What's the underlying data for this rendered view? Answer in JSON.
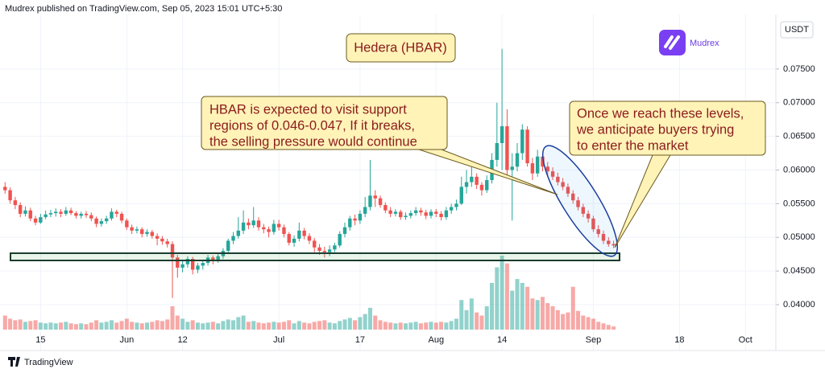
{
  "chart_data": {
    "type": "candlestick",
    "header": "Mudrex published on TradingView.com, Sep 05, 2023 15:01 UTC+5:30",
    "title": "Hedera (HBAR)",
    "logo": "Mudrex",
    "currency": "USDT",
    "footer": "TradingView",
    "annotations": [
      {
        "lines": [
          "HBAR is expected to visit support",
          "regions of 0.046-0.047, If it breaks,",
          "the selling pressure would continue"
        ]
      },
      {
        "lines": [
          "Once we reach these levels,",
          "we anticipate buyers trying",
          "to enter the market"
        ]
      }
    ],
    "x": [
      "2023-05-08",
      "2023-05-09",
      "2023-05-10",
      "2023-05-11",
      "2023-05-12",
      "2023-05-13",
      "2023-05-14",
      "2023-05-15",
      "2023-05-16",
      "2023-05-17",
      "2023-05-18",
      "2023-05-19",
      "2023-05-20",
      "2023-05-21",
      "2023-05-22",
      "2023-05-23",
      "2023-05-24",
      "2023-05-25",
      "2023-05-26",
      "2023-05-27",
      "2023-05-28",
      "2023-05-29",
      "2023-05-30",
      "2023-05-31",
      "2023-06-01",
      "2023-06-02",
      "2023-06-03",
      "2023-06-04",
      "2023-06-05",
      "2023-06-06",
      "2023-06-07",
      "2023-06-08",
      "2023-06-09",
      "2023-06-10",
      "2023-06-11",
      "2023-06-12",
      "2023-06-13",
      "2023-06-14",
      "2023-06-15",
      "2023-06-16",
      "2023-06-17",
      "2023-06-18",
      "2023-06-19",
      "2023-06-20",
      "2023-06-21",
      "2023-06-22",
      "2023-06-23",
      "2023-06-24",
      "2023-06-25",
      "2023-06-26",
      "2023-06-27",
      "2023-06-28",
      "2023-06-29",
      "2023-06-30",
      "2023-07-01",
      "2023-07-02",
      "2023-07-03",
      "2023-07-04",
      "2023-07-05",
      "2023-07-06",
      "2023-07-07",
      "2023-07-08",
      "2023-07-09",
      "2023-07-10",
      "2023-07-11",
      "2023-07-12",
      "2023-07-13",
      "2023-07-14",
      "2023-07-15",
      "2023-07-16",
      "2023-07-17",
      "2023-07-18",
      "2023-07-19",
      "2023-07-20",
      "2023-07-21",
      "2023-07-22",
      "2023-07-23",
      "2023-07-24",
      "2023-07-25",
      "2023-07-26",
      "2023-07-27",
      "2023-07-28",
      "2023-07-29",
      "2023-07-30",
      "2023-07-31",
      "2023-08-01",
      "2023-08-02",
      "2023-08-03",
      "2023-08-04",
      "2023-08-05",
      "2023-08-06",
      "2023-08-07",
      "2023-08-08",
      "2023-08-09",
      "2023-08-10",
      "2023-08-11",
      "2023-08-12",
      "2023-08-13",
      "2023-08-14",
      "2023-08-15",
      "2023-08-16",
      "2023-08-17",
      "2023-08-18",
      "2023-08-19",
      "2023-08-20",
      "2023-08-21",
      "2023-08-22",
      "2023-08-23",
      "2023-08-24",
      "2023-08-25",
      "2023-08-26",
      "2023-08-27",
      "2023-08-28",
      "2023-08-29",
      "2023-08-30",
      "2023-08-31",
      "2023-09-01",
      "2023-09-02",
      "2023-09-03",
      "2023-09-04",
      "2023-09-05"
    ],
    "open": [
      0.0575,
      0.057,
      0.0555,
      0.0548,
      0.0535,
      0.054,
      0.0528,
      0.0522,
      0.053,
      0.0534,
      0.0536,
      0.0538,
      0.0535,
      0.054,
      0.0536,
      0.0532,
      0.0535,
      0.0533,
      0.0528,
      0.052,
      0.0524,
      0.0528,
      0.0538,
      0.0535,
      0.0525,
      0.0515,
      0.051,
      0.0512,
      0.0505,
      0.0508,
      0.0502,
      0.0498,
      0.0494,
      0.049,
      0.047,
      0.0455,
      0.046,
      0.0468,
      0.0452,
      0.0458,
      0.0462,
      0.047,
      0.0466,
      0.0472,
      0.048,
      0.0495,
      0.0502,
      0.051,
      0.0522,
      0.0518,
      0.0525,
      0.0515,
      0.0512,
      0.0508,
      0.052,
      0.0515,
      0.0505,
      0.0492,
      0.0498,
      0.051,
      0.0502,
      0.0495,
      0.0485,
      0.048,
      0.0478,
      0.0482,
      0.0488,
      0.0505,
      0.0515,
      0.0528,
      0.0525,
      0.0535,
      0.0545,
      0.0562,
      0.0558,
      0.0548,
      0.054,
      0.0535,
      0.0538,
      0.053,
      0.0532,
      0.0536,
      0.054,
      0.0537,
      0.0532,
      0.0538,
      0.0535,
      0.053,
      0.054,
      0.0545,
      0.055,
      0.0575,
      0.0582,
      0.059,
      0.0578,
      0.057,
      0.0585,
      0.0615,
      0.064,
      0.0665,
      0.06,
      0.0605,
      0.0625,
      0.066,
      0.061,
      0.0595,
      0.062,
      0.0605,
      0.0598,
      0.059,
      0.0582,
      0.0575,
      0.0565,
      0.0555,
      0.0545,
      0.0535,
      0.0528,
      0.0512,
      0.0505,
      0.0495,
      0.049
    ],
    "high": [
      0.0582,
      0.0574,
      0.056,
      0.0552,
      0.0546,
      0.0544,
      0.0532,
      0.0535,
      0.054,
      0.0541,
      0.0543,
      0.0542,
      0.0545,
      0.0544,
      0.0539,
      0.0538,
      0.0539,
      0.0537,
      0.0531,
      0.0528,
      0.0532,
      0.0543,
      0.0541,
      0.0538,
      0.0528,
      0.0519,
      0.0516,
      0.0515,
      0.0512,
      0.0511,
      0.0506,
      0.0502,
      0.0498,
      0.0494,
      0.0474,
      0.0466,
      0.0472,
      0.0471,
      0.0462,
      0.0466,
      0.0474,
      0.0473,
      0.0476,
      0.0484,
      0.0498,
      0.0508,
      0.053,
      0.054,
      0.0528,
      0.0545,
      0.053,
      0.052,
      0.0516,
      0.0526,
      0.0526,
      0.0519,
      0.0508,
      0.0503,
      0.0522,
      0.0514,
      0.0506,
      0.0499,
      0.049,
      0.0486,
      0.0488,
      0.0492,
      0.0509,
      0.0522,
      0.0532,
      0.0534,
      0.054,
      0.056,
      0.0615,
      0.057,
      0.0562,
      0.0552,
      0.0545,
      0.0542,
      0.0541,
      0.0537,
      0.054,
      0.0545,
      0.0544,
      0.0541,
      0.0542,
      0.0542,
      0.0539,
      0.0545,
      0.055,
      0.0556,
      0.059,
      0.06,
      0.0605,
      0.0595,
      0.0582,
      0.0592,
      0.0625,
      0.07,
      0.078,
      0.069,
      0.0625,
      0.064,
      0.0668,
      0.0665,
      0.0618,
      0.063,
      0.0625,
      0.0612,
      0.0604,
      0.0596,
      0.0588,
      0.058,
      0.057,
      0.056,
      0.055,
      0.054,
      0.0532,
      0.0518,
      0.051,
      0.05,
      0.0495
    ],
    "low": [
      0.0565,
      0.055,
      0.0542,
      0.053,
      0.0531,
      0.0524,
      0.0518,
      0.052,
      0.0527,
      0.053,
      0.0531,
      0.053,
      0.0532,
      0.0533,
      0.0528,
      0.0528,
      0.0529,
      0.0524,
      0.0515,
      0.0516,
      0.052,
      0.0525,
      0.053,
      0.0521,
      0.0511,
      0.0505,
      0.0506,
      0.05,
      0.0501,
      0.0498,
      0.0488,
      0.0489,
      0.0485,
      0.041,
      0.044,
      0.0448,
      0.0455,
      0.0445,
      0.0447,
      0.0452,
      0.0458,
      0.046,
      0.0462,
      0.0468,
      0.0476,
      0.049,
      0.0498,
      0.0505,
      0.0512,
      0.0514,
      0.051,
      0.0506,
      0.05,
      0.0504,
      0.051,
      0.05,
      0.0488,
      0.0486,
      0.0494,
      0.0497,
      0.049,
      0.0478,
      0.0474,
      0.047,
      0.0472,
      0.0478,
      0.0485,
      0.05,
      0.051,
      0.0518,
      0.052,
      0.053,
      0.054,
      0.0545,
      0.0544,
      0.0536,
      0.053,
      0.0531,
      0.0526,
      0.0526,
      0.0528,
      0.0532,
      0.0532,
      0.0527,
      0.0528,
      0.053,
      0.0525,
      0.0526,
      0.0535,
      0.054,
      0.0548,
      0.0565,
      0.0575,
      0.0572,
      0.0562,
      0.0566,
      0.058,
      0.0605,
      0.06,
      0.059,
      0.0525,
      0.0598,
      0.0615,
      0.0605,
      0.0585,
      0.059,
      0.0598,
      0.059,
      0.0585,
      0.0577,
      0.057,
      0.056,
      0.055,
      0.054,
      0.053,
      0.0522,
      0.0508,
      0.05,
      0.049,
      0.0486,
      0.0484
    ],
    "close": [
      0.057,
      0.0555,
      0.0548,
      0.0535,
      0.054,
      0.0528,
      0.0522,
      0.053,
      0.0534,
      0.0536,
      0.0538,
      0.0535,
      0.054,
      0.0536,
      0.0532,
      0.0535,
      0.0533,
      0.0528,
      0.052,
      0.0524,
      0.0528,
      0.0538,
      0.0535,
      0.0525,
      0.0515,
      0.051,
      0.0512,
      0.0505,
      0.0508,
      0.0502,
      0.0498,
      0.0494,
      0.049,
      0.047,
      0.0455,
      0.046,
      0.0468,
      0.0452,
      0.0458,
      0.0462,
      0.047,
      0.0466,
      0.0472,
      0.048,
      0.0495,
      0.0502,
      0.051,
      0.0522,
      0.0518,
      0.0525,
      0.0515,
      0.0512,
      0.0508,
      0.052,
      0.0515,
      0.0505,
      0.0492,
      0.0498,
      0.051,
      0.0502,
      0.0495,
      0.0485,
      0.048,
      0.0478,
      0.0482,
      0.0488,
      0.0505,
      0.0515,
      0.0528,
      0.0525,
      0.0535,
      0.0545,
      0.0562,
      0.0558,
      0.0548,
      0.054,
      0.0535,
      0.0538,
      0.053,
      0.0532,
      0.0536,
      0.054,
      0.0537,
      0.0532,
      0.0538,
      0.0535,
      0.053,
      0.054,
      0.0545,
      0.055,
      0.0575,
      0.0582,
      0.059,
      0.0578,
      0.057,
      0.0585,
      0.0615,
      0.064,
      0.0665,
      0.06,
      0.0605,
      0.0625,
      0.066,
      0.061,
      0.0595,
      0.062,
      0.0605,
      0.0598,
      0.059,
      0.0582,
      0.0575,
      0.0565,
      0.0555,
      0.0545,
      0.0535,
      0.0528,
      0.0512,
      0.0505,
      0.0495,
      0.049,
      0.0488
    ],
    "volume": [
      18,
      14,
      12,
      13,
      10,
      11,
      12,
      9,
      8,
      9,
      8,
      9,
      10,
      8,
      7,
      8,
      7,
      9,
      12,
      9,
      10,
      12,
      9,
      11,
      14,
      10,
      9,
      8,
      9,
      10,
      12,
      11,
      13,
      30,
      18,
      14,
      10,
      12,
      9,
      8,
      9,
      10,
      8,
      11,
      13,
      12,
      16,
      18,
      10,
      11,
      9,
      8,
      9,
      10,
      9,
      10,
      12,
      8,
      11,
      9,
      8,
      10,
      11,
      12,
      9,
      8,
      11,
      13,
      15,
      12,
      16,
      20,
      28,
      18,
      12,
      10,
      9,
      8,
      9,
      8,
      9,
      10,
      8,
      9,
      10,
      9,
      10,
      9,
      11,
      14,
      38,
      25,
      40,
      22,
      18,
      30,
      60,
      80,
      95,
      85,
      50,
      65,
      60,
      55,
      40,
      38,
      42,
      34,
      30,
      25,
      20,
      22,
      55,
      24,
      18,
      16,
      14,
      10,
      8,
      6,
      4
    ],
    "up_color": "#26a69a",
    "down_color": "#ef5350",
    "ylim": [
      0.0363,
      0.0831
    ],
    "yticks": [
      {
        "value": 0.04,
        "label": "0.04000"
      },
      {
        "value": 0.045,
        "label": "0.04500"
      },
      {
        "value": 0.05,
        "label": "0.05000"
      },
      {
        "value": 0.055,
        "label": "0.05500"
      },
      {
        "value": 0.06,
        "label": "0.06000"
      },
      {
        "value": 0.065,
        "label": "0.06500"
      },
      {
        "value": 0.07,
        "label": "0.07000"
      },
      {
        "value": 0.075,
        "label": "0.07500"
      }
    ],
    "xlim": [
      "2023-05-07",
      "2023-10-07"
    ],
    "xticks": [
      {
        "value": "2023-05-15",
        "label": "15"
      },
      {
        "value": "2023-06-01",
        "label": "Jun"
      },
      {
        "value": "2023-06-12",
        "label": "12"
      },
      {
        "value": "2023-07-01",
        "label": "Jul"
      },
      {
        "value": "2023-07-17",
        "label": "17"
      },
      {
        "value": "2023-08-01",
        "label": "Aug"
      },
      {
        "value": "2023-08-14",
        "label": "14"
      },
      {
        "value": "2023-09-01",
        "label": "Sep"
      },
      {
        "value": "2023-09-18",
        "label": "18"
      },
      {
        "value": "2023-10-01",
        "label": "Oct"
      }
    ],
    "grid": true
  }
}
